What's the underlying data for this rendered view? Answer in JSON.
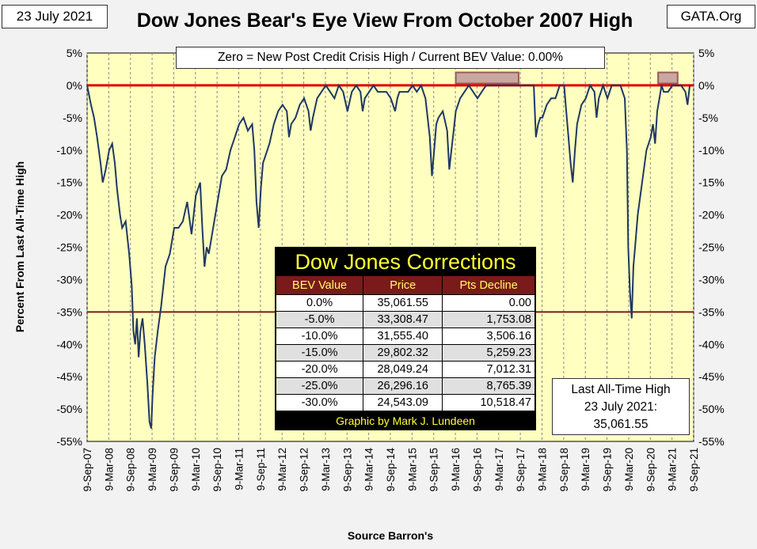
{
  "header": {
    "date": "23 July 2021",
    "site": "GATA.Org",
    "title": "Dow Jones Bear's Eye View From October 2007 High"
  },
  "subtitle": "Zero = New Post Credit Crisis High / Current BEV Value:  0.00%",
  "corrections": {
    "title": "Dow Jones Corrections",
    "headers": [
      "BEV Value",
      "Price",
      "Pts Decline"
    ],
    "rows": [
      [
        "0.0%",
        "35,061.55",
        "0.00"
      ],
      [
        "-5.0%",
        "33,308.47",
        "1,753.08"
      ],
      [
        "-10.0%",
        "31,555.40",
        "3,506.16"
      ],
      [
        "-15.0%",
        "29,802.32",
        "5,259.23"
      ],
      [
        "-20.0%",
        "28,049.24",
        "7,012.31"
      ],
      [
        "-25.0%",
        "26,296.16",
        "8,765.39"
      ],
      [
        "-30.0%",
        "24,543.09",
        "10,518.47"
      ]
    ],
    "footer": "Graphic by Mark J. Lundeen"
  },
  "ath_box": {
    "line1": "Last All-Time High",
    "line2": "23 July 2021:",
    "line3": "35,061.55"
  },
  "colors": {
    "plot_bg": "#ffffc0",
    "series": "#1f3864",
    "zero_line": "#dd0000",
    "minus35_line": "#7a1a1a",
    "highlight_box": "#9b5a5a"
  },
  "chart_data": {
    "type": "line",
    "title": "Dow Jones Bear's Eye View From October 2007 High",
    "xlabel": "Source Barron's",
    "ylabel": "Percent From Last All-Time High",
    "ylim": [
      -55,
      5
    ],
    "yticks": [
      5,
      0,
      -5,
      -10,
      -15,
      -20,
      -25,
      -30,
      -35,
      -40,
      -45,
      -50,
      -55
    ],
    "ytick_labels": [
      "5%",
      "0%",
      "-5%",
      "-10%",
      "-15%",
      "-20%",
      "-25%",
      "-30%",
      "-35%",
      "-40%",
      "-45%",
      "-50%",
      "-55%"
    ],
    "x_start": 2007.69,
    "x_end": 2021.69,
    "x_tick_labels": [
      "9-Sep-07",
      "9-Mar-08",
      "9-Sep-08",
      "9-Mar-09",
      "9-Sep-09",
      "9-Mar-10",
      "9-Sep-10",
      "9-Mar-11",
      "9-Sep-11",
      "9-Mar-12",
      "9-Sep-12",
      "9-Mar-13",
      "9-Sep-13",
      "9-Mar-14",
      "9-Sep-14",
      "9-Mar-15",
      "9-Sep-15",
      "9-Mar-16",
      "9-Sep-16",
      "9-Mar-17",
      "9-Sep-17",
      "9-Mar-18",
      "9-Sep-18",
      "9-Mar-19",
      "9-Sep-19",
      "9-Mar-20",
      "9-Sep-20",
      "9-Mar-21",
      "9-Sep-21"
    ],
    "reference_lines": [
      {
        "value": 0,
        "label": "0%"
      },
      {
        "value": -35,
        "label": "-35%"
      }
    ],
    "highlight_ranges": [
      {
        "x_from": 2016.2,
        "x_to": 2017.65,
        "y_from": 2.0,
        "y_to": 0.3
      },
      {
        "x_from": 2020.87,
        "x_to": 2021.32,
        "y_from": 2.0,
        "y_to": 0.3
      }
    ],
    "series": [
      {
        "name": "Dow Jones BEV",
        "x": [
          2007.69,
          2007.78,
          2007.85,
          2007.92,
          2008.0,
          2008.05,
          2008.12,
          2008.2,
          2008.27,
          2008.33,
          2008.38,
          2008.45,
          2008.5,
          2008.58,
          2008.66,
          2008.72,
          2008.76,
          2008.8,
          2008.84,
          2008.88,
          2008.92,
          2008.97,
          2009.02,
          2009.08,
          2009.13,
          2009.17,
          2009.2,
          2009.25,
          2009.32,
          2009.4,
          2009.5,
          2009.6,
          2009.7,
          2009.8,
          2009.9,
          2010.0,
          2010.1,
          2010.2,
          2010.3,
          2010.35,
          2010.4,
          2010.45,
          2010.5,
          2010.6,
          2010.7,
          2010.8,
          2010.9,
          2011.0,
          2011.1,
          2011.2,
          2011.3,
          2011.4,
          2011.5,
          2011.55,
          2011.6,
          2011.65,
          2011.7,
          2011.75,
          2011.8,
          2011.9,
          2012.0,
          2012.1,
          2012.2,
          2012.3,
          2012.35,
          2012.4,
          2012.5,
          2012.6,
          2012.7,
          2012.8,
          2012.85,
          2012.9,
          2013.0,
          2013.1,
          2013.2,
          2013.3,
          2013.4,
          2013.5,
          2013.6,
          2013.7,
          2013.8,
          2013.9,
          2014.0,
          2014.05,
          2014.1,
          2014.2,
          2014.3,
          2014.4,
          2014.5,
          2014.6,
          2014.7,
          2014.8,
          2014.85,
          2014.9,
          2015.0,
          2015.1,
          2015.2,
          2015.3,
          2015.4,
          2015.5,
          2015.6,
          2015.65,
          2015.7,
          2015.75,
          2015.8,
          2015.9,
          2016.0,
          2016.05,
          2016.1,
          2016.15,
          2016.2,
          2016.3,
          2016.4,
          2016.5,
          2016.6,
          2016.7,
          2016.8,
          2016.9,
          2017.0,
          2017.2,
          2017.4,
          2017.6,
          2017.8,
          2018.0,
          2018.05,
          2018.1,
          2018.15,
          2018.2,
          2018.3,
          2018.4,
          2018.5,
          2018.6,
          2018.7,
          2018.75,
          2018.8,
          2018.85,
          2018.9,
          2018.95,
          2019.0,
          2019.1,
          2019.2,
          2019.3,
          2019.4,
          2019.45,
          2019.5,
          2019.6,
          2019.7,
          2019.8,
          2019.9,
          2020.0,
          2020.1,
          2020.15,
          2020.18,
          2020.22,
          2020.26,
          2020.3,
          2020.35,
          2020.4,
          2020.5,
          2020.6,
          2020.7,
          2020.75,
          2020.8,
          2020.85,
          2020.9,
          2020.95,
          2021.0,
          2021.1,
          2021.2,
          2021.3,
          2021.4,
          2021.5,
          2021.55,
          2021.6
        ],
        "values": [
          0,
          -3,
          -5,
          -8,
          -12,
          -15,
          -13,
          -10,
          -9,
          -12,
          -16,
          -20,
          -22,
          -21,
          -26,
          -31,
          -38,
          -40,
          -36,
          -42,
          -38,
          -36,
          -40,
          -46,
          -52,
          -53,
          -48,
          -42,
          -38,
          -34,
          -28,
          -26,
          -22,
          -22,
          -21,
          -18,
          -23,
          -17,
          -15,
          -22,
          -28,
          -25,
          -26,
          -22,
          -18,
          -14,
          -13,
          -10,
          -8,
          -6,
          -5,
          -7,
          -6,
          -10,
          -18,
          -22,
          -16,
          -12,
          -11,
          -9,
          -6,
          -4,
          -3,
          -4,
          -8,
          -6,
          -5,
          -3,
          -2,
          -4,
          -7,
          -5,
          -2,
          -1,
          0,
          -1,
          -2,
          0,
          -1,
          -4,
          -1,
          0,
          -1,
          -4,
          -2,
          -1,
          0,
          -1,
          -1,
          -1,
          -2,
          -4,
          -2,
          -1,
          -1,
          -1,
          0,
          -1,
          0,
          -2,
          -8,
          -14,
          -10,
          -6,
          -5,
          -4,
          -7,
          -13,
          -10,
          -7,
          -4,
          -2,
          -1,
          0,
          -1,
          -2,
          -1,
          0,
          0,
          0,
          0,
          0,
          0,
          0,
          -8,
          -6,
          -5,
          -5,
          -3,
          -2,
          -2,
          0,
          0,
          -4,
          -8,
          -12,
          -15,
          -10,
          -6,
          -3,
          -2,
          0,
          -1,
          -5,
          -2,
          0,
          -2,
          0,
          0,
          0,
          -2,
          -10,
          -25,
          -32,
          -36,
          -28,
          -24,
          -20,
          -15,
          -10,
          -8,
          -6,
          -9,
          -4,
          -2,
          0,
          -1,
          -1,
          0,
          0,
          0,
          -1,
          -3,
          0
        ]
      }
    ]
  }
}
